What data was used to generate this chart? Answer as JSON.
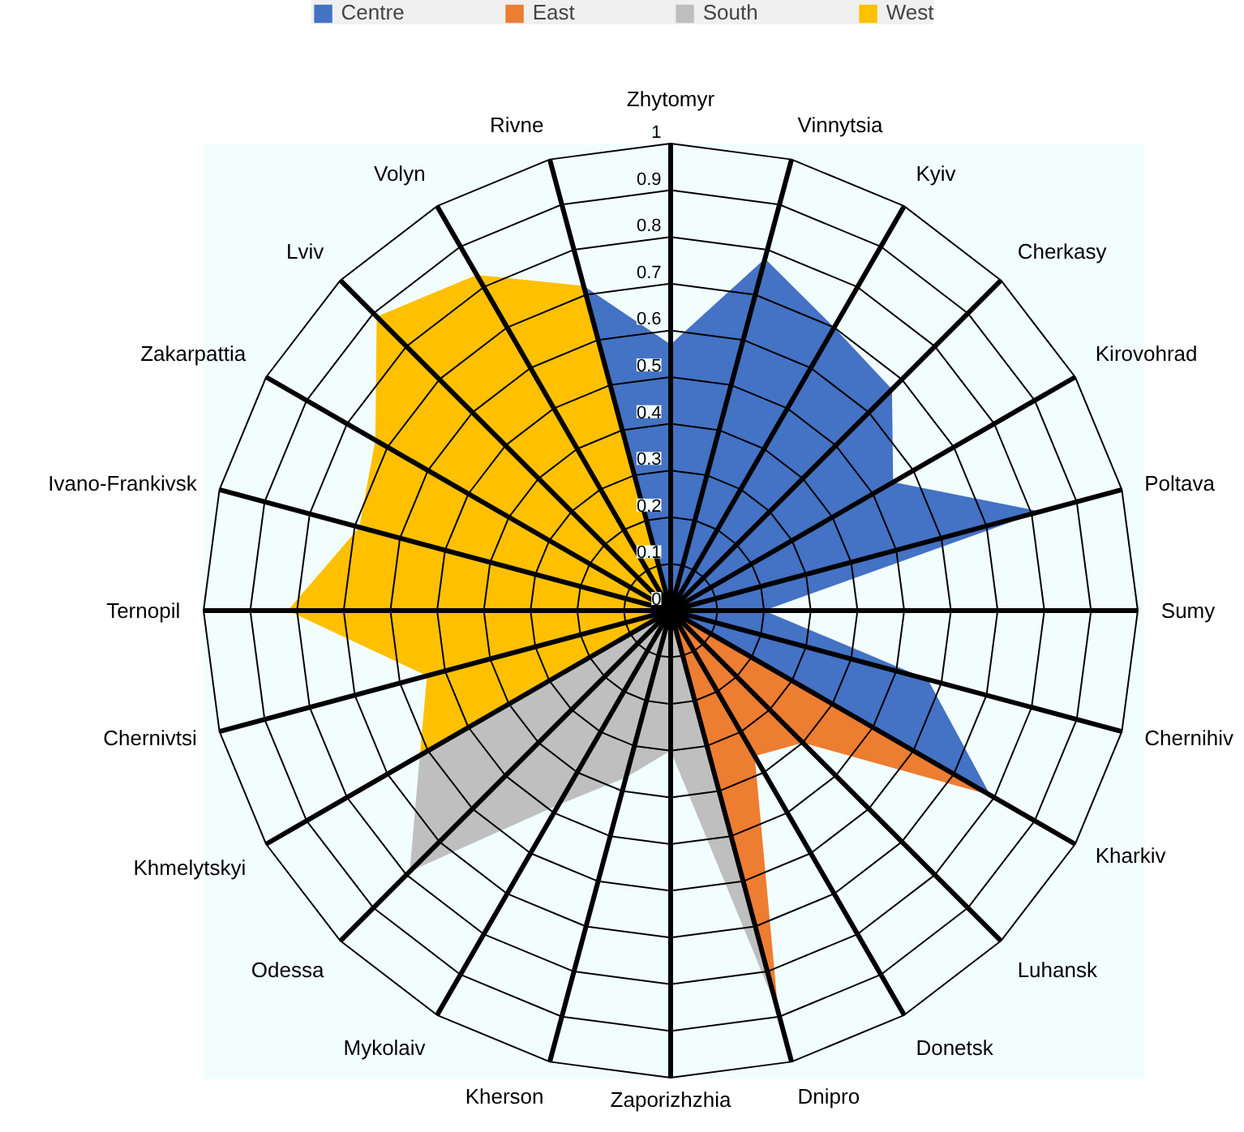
{
  "chart_data": {
    "type": "radar",
    "categories": [
      "Zhytomyr",
      "Vinnytsia",
      "Kyiv",
      "Cherkasy",
      "Kirovohrad",
      "Poltava",
      "Sumy",
      "Chernihiv",
      "Kharkiv",
      "Luhansk",
      "Donetsk",
      "Dnipro",
      "Zaporizhzhia",
      "Kherson",
      "Mykolaiv",
      "Odessa",
      "Khmelytskyi",
      "Chernivtsi",
      "Ternopil",
      "Ivano-Frankivsk",
      "Zakarpattia",
      "Lviv",
      "Volyn",
      "Rivne"
    ],
    "series": [
      {
        "name": "Centre",
        "color": "#4472c4",
        "values": [
          0.57,
          0.78,
          0.7,
          0.67,
          0.55,
          0.82,
          0.2,
          0.57,
          0.79,
          0,
          0,
          0,
          0,
          0,
          0,
          0,
          0,
          0,
          0,
          0,
          0,
          0,
          0,
          0.72
        ]
      },
      {
        "name": "East",
        "color": "#ed7d31",
        "values": [
          0,
          0,
          0,
          0,
          0,
          0,
          0,
          0,
          0.79,
          0.4,
          0.36,
          0.89,
          0,
          0,
          0,
          0,
          0,
          0,
          0,
          0,
          0,
          0,
          0,
          0
        ]
      },
      {
        "name": "South",
        "color": "#bfbfbf",
        "values": [
          0,
          0,
          0,
          0,
          0,
          0,
          0,
          0,
          0,
          0,
          0,
          0.89,
          0.3,
          0.37,
          0.48,
          0.79,
          0.62,
          0,
          0,
          0,
          0,
          0,
          0,
          0
        ]
      },
      {
        "name": "West",
        "color": "#ffc000",
        "values": [
          0,
          0,
          0,
          0,
          0,
          0,
          0,
          0,
          0,
          0,
          0,
          0,
          0,
          0,
          0,
          0,
          0.62,
          0.54,
          0.82,
          0.69,
          0.73,
          0.89,
          0.83,
          0.72
        ]
      }
    ],
    "ylim": [
      0,
      1
    ],
    "yticks": [
      0,
      0.1,
      0.2,
      0.3,
      0.4,
      0.5,
      0.6,
      0.7,
      0.8,
      0.9,
      1
    ],
    "grid": true,
    "legend": "top"
  }
}
